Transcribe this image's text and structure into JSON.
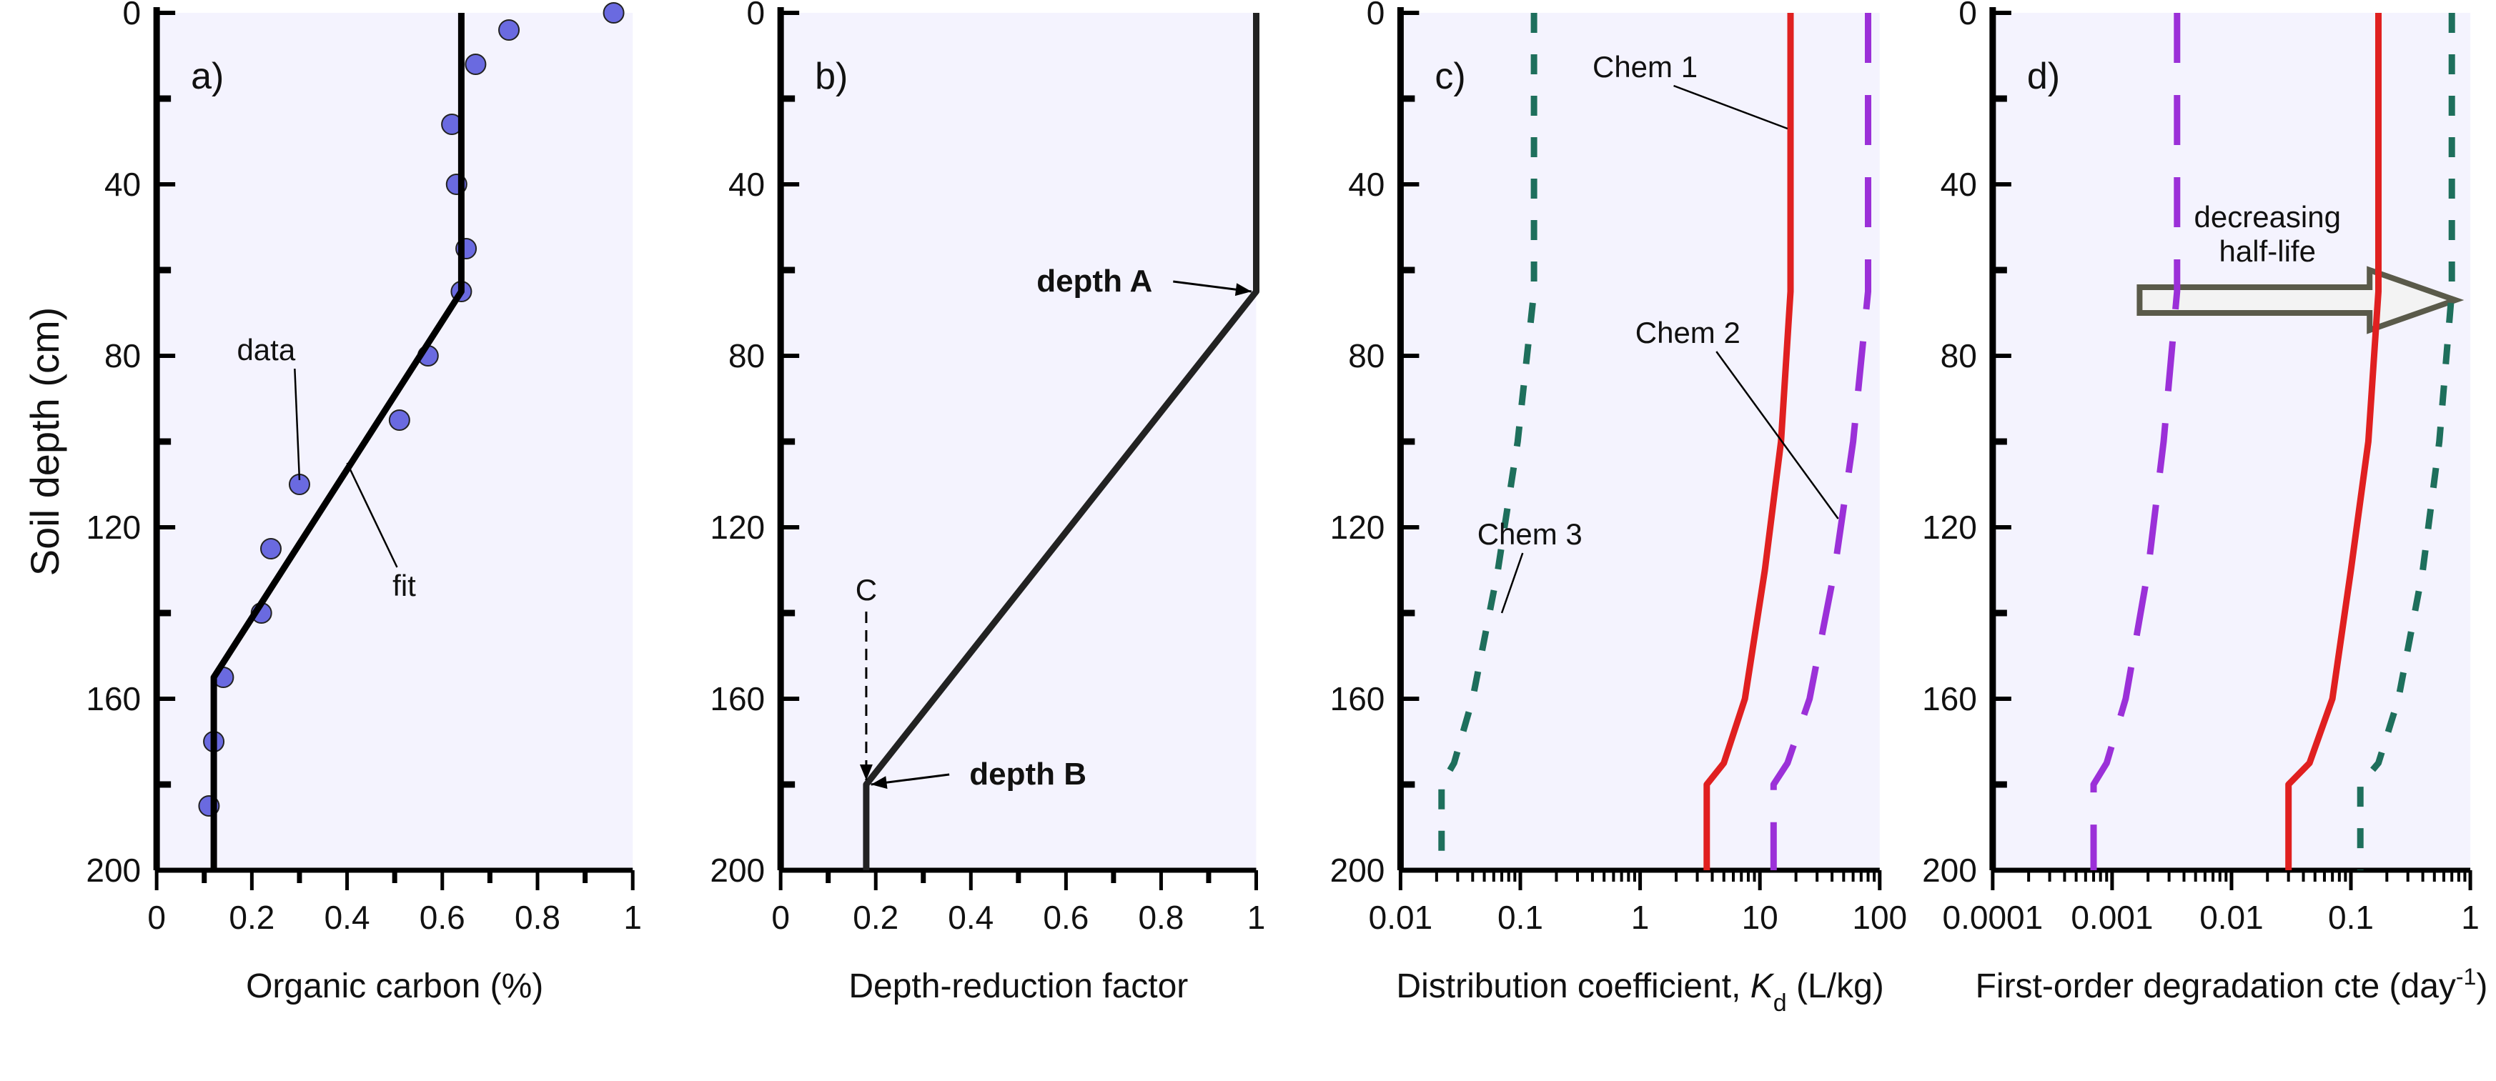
{
  "figure": {
    "y_axis_label": "Soil depth (cm)"
  },
  "chart_data": [
    {
      "panel": "a)",
      "type": "scatter",
      "xlabel": "Organic carbon (%)",
      "ylabel": "Soil depth (cm)",
      "xscale": "linear",
      "xlim": [
        0,
        1
      ],
      "ylim": [
        200,
        0
      ],
      "y_inverted": true,
      "xticks": [
        0,
        0.2,
        0.4,
        0.6,
        0.8,
        1
      ],
      "xtick_labels": [
        "0",
        "0.2",
        "0.4",
        "0.6",
        "0.8",
        "1"
      ],
      "yticks": [
        0,
        40,
        80,
        120,
        160,
        200
      ],
      "ytick_labels": [
        "0",
        "40",
        "80",
        "120",
        "160",
        "200"
      ],
      "series": [
        {
          "name": "data",
          "kind": "scatter",
          "color": "#6a6ae0",
          "points": [
            [
              0.96,
              0
            ],
            [
              0.74,
              4
            ],
            [
              0.67,
              12
            ],
            [
              0.62,
              26
            ],
            [
              0.63,
              40
            ],
            [
              0.65,
              55
            ],
            [
              0.64,
              65
            ],
            [
              0.57,
              80
            ],
            [
              0.51,
              95
            ],
            [
              0.3,
              110
            ],
            [
              0.24,
              125
            ],
            [
              0.22,
              140
            ],
            [
              0.14,
              155
            ],
            [
              0.12,
              170
            ],
            [
              0.11,
              185
            ]
          ]
        },
        {
          "name": "fit",
          "kind": "line",
          "color": "#000000",
          "points": [
            [
              0.64,
              0
            ],
            [
              0.64,
              65
            ],
            [
              0.12,
              155
            ],
            [
              0.12,
              200
            ]
          ]
        }
      ],
      "annotations": [
        {
          "text": "data",
          "x": 0.23,
          "y": 81,
          "arrow_to": [
            0.3,
            109
          ]
        },
        {
          "text": "fit",
          "x": 0.52,
          "y": 136,
          "arrow_to": [
            0.4,
            105
          ]
        }
      ]
    },
    {
      "panel": "b)",
      "type": "line",
      "xlabel": "Depth-reduction factor",
      "ylabel": "Soil depth (cm)",
      "xscale": "linear",
      "xlim": [
        0,
        1
      ],
      "ylim": [
        200,
        0
      ],
      "y_inverted": true,
      "xticks": [
        0,
        0.2,
        0.4,
        0.6,
        0.8,
        1
      ],
      "xtick_labels": [
        "0",
        "0.2",
        "0.4",
        "0.6",
        "0.8",
        "1"
      ],
      "yticks": [
        0,
        40,
        80,
        120,
        160,
        200
      ],
      "ytick_labels": [
        "0",
        "40",
        "80",
        "120",
        "160",
        "200"
      ],
      "series": [
        {
          "name": "",
          "kind": "line",
          "color": "#222222",
          "points": [
            [
              1,
              0
            ],
            [
              1,
              65
            ],
            [
              0.18,
              180
            ],
            [
              0.18,
              200
            ]
          ]
        }
      ],
      "annotations": [
        {
          "text": "depth A",
          "x": 0.66,
          "y": 65,
          "arrow_to": [
            0.99,
            65
          ],
          "bold": true
        },
        {
          "text": "depth B",
          "x": 0.52,
          "y": 180,
          "arrow_to": [
            0.19,
            180
          ],
          "bold": true
        },
        {
          "text": "C",
          "x": 0.18,
          "y": 137,
          "arrow_to": [
            0.18,
            179
          ],
          "dashed": true
        }
      ]
    },
    {
      "panel": "c)",
      "type": "line",
      "xlabel_prefix": "Distribution coefficient, ",
      "xlabel_symbol": "K",
      "xlabel_sub": "d",
      "xlabel_suffix": " (L/kg)",
      "ylabel": "Soil depth (cm)",
      "xscale": "log",
      "xlim": [
        0.01,
        100
      ],
      "ylim": [
        200,
        0
      ],
      "y_inverted": true,
      "xticks": [
        0.01,
        0.1,
        1,
        10,
        100
      ],
      "xtick_labels": [
        "0.01",
        "0.1",
        "1",
        "10",
        "100"
      ],
      "yticks": [
        0,
        40,
        80,
        120,
        160,
        200
      ],
      "ytick_labels": [
        "0",
        "40",
        "80",
        "120",
        "160",
        "200"
      ],
      "series": [
        {
          "name": "Chem 1",
          "kind": "line",
          "style": "solid",
          "color": "#e02020",
          "points": [
            [
              18,
              0
            ],
            [
              18,
              65
            ],
            [
              15,
              100
            ],
            [
              11,
              130
            ],
            [
              7.5,
              160
            ],
            [
              5,
              175
            ],
            [
              3.6,
              180
            ],
            [
              3.6,
              200
            ]
          ]
        },
        {
          "name": "Chem 2",
          "kind": "line",
          "style": "dashed",
          "color": "#9b30d8",
          "points": [
            [
              80,
              0
            ],
            [
              80,
              65
            ],
            [
              60,
              100
            ],
            [
              42,
              130
            ],
            [
              26,
              160
            ],
            [
              17,
              175
            ],
            [
              13,
              180
            ],
            [
              13,
              200
            ]
          ]
        },
        {
          "name": "Chem 3",
          "kind": "line",
          "style": "dashed",
          "color": "#1e6f5c",
          "points": [
            [
              0.13,
              0
            ],
            [
              0.13,
              65
            ],
            [
              0.095,
              100
            ],
            [
              0.065,
              130
            ],
            [
              0.04,
              160
            ],
            [
              0.028,
              175
            ],
            [
              0.022,
              180
            ],
            [
              0.022,
              200
            ]
          ]
        }
      ],
      "annotations": [
        {
          "text": "Chem 1",
          "x": 1.1,
          "y": 15,
          "arrow_to": [
            17,
            27
          ]
        },
        {
          "text": "Chem 2",
          "x": 2.5,
          "y": 77,
          "arrow_to": [
            45,
            118
          ]
        },
        {
          "text": "Chem 3",
          "x": 0.12,
          "y": 124,
          "arrow_to": [
            0.07,
            140
          ]
        }
      ]
    },
    {
      "panel": "d)",
      "type": "line",
      "xlabel_prefix": "First-order degradation cte (day",
      "xlabel_sup": "-1",
      "xlabel_suffix": ")",
      "ylabel": "Soil depth (cm)",
      "xscale": "log",
      "xlim": [
        0.0001,
        1
      ],
      "ylim": [
        200,
        0
      ],
      "y_inverted": true,
      "xticks": [
        0.0001,
        0.001,
        0.01,
        0.1,
        1
      ],
      "xtick_labels": [
        "0.0001",
        "0.001",
        "0.01",
        "0.1",
        "1"
      ],
      "yticks": [
        0,
        40,
        80,
        120,
        160,
        200
      ],
      "ytick_labels": [
        "0",
        "40",
        "80",
        "120",
        "160",
        "200"
      ],
      "series": [
        {
          "name": "Chem 1",
          "kind": "line",
          "style": "solid",
          "color": "#e02020",
          "points": [
            [
              0.17,
              0
            ],
            [
              0.17,
              65
            ],
            [
              0.14,
              100
            ],
            [
              0.1,
              130
            ],
            [
              0.07,
              160
            ],
            [
              0.045,
              175
            ],
            [
              0.03,
              180
            ],
            [
              0.03,
              200
            ]
          ]
        },
        {
          "name": "Chem 2",
          "kind": "line",
          "style": "dashed",
          "color": "#9b30d8",
          "points": [
            [
              0.0035,
              0
            ],
            [
              0.0035,
              65
            ],
            [
              0.0027,
              100
            ],
            [
              0.002,
              130
            ],
            [
              0.0013,
              160
            ],
            [
              0.0009,
              175
            ],
            [
              0.0007,
              180
            ],
            [
              0.0007,
              200
            ]
          ]
        },
        {
          "name": "Chem 3",
          "kind": "line",
          "style": "dashed",
          "color": "#1e6f5c",
          "points": [
            [
              0.7,
              0
            ],
            [
              0.7,
              65
            ],
            [
              0.55,
              100
            ],
            [
              0.4,
              130
            ],
            [
              0.25,
              160
            ],
            [
              0.17,
              175
            ],
            [
              0.12,
              180
            ],
            [
              0.12,
              200
            ]
          ]
        }
      ],
      "annotations": [
        {
          "text": "decreasing",
          "x": 0.02,
          "y": 50
        },
        {
          "text": "half-life",
          "x": 0.02,
          "y": 58
        }
      ],
      "big_arrow": {
        "from": [
          0.0017,
          67
        ],
        "to": [
          0.75,
          67
        ],
        "fill": "#f3f3f3",
        "stroke": "#5a5a4a"
      }
    }
  ]
}
